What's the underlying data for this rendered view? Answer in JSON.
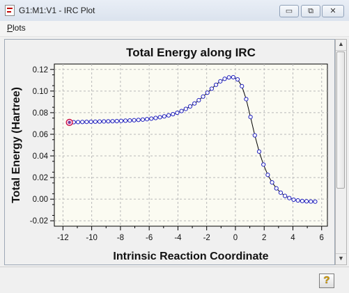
{
  "window": {
    "title": "G1:M1:V1 - IRC Plot",
    "buttons": {
      "minimize": "▭",
      "maximize": "⧉",
      "close": "✕"
    }
  },
  "menu": {
    "items": [
      "Plots"
    ]
  },
  "scrollbar": {
    "up": "▲",
    "down": "▼"
  },
  "help": {
    "label": "?"
  },
  "colors": {
    "plot_background": "#fbfbf2",
    "marker": "#1f1fbf",
    "highlight_marker": "#cc0033",
    "line": "#000000"
  },
  "chart_data": {
    "type": "line",
    "title": "Total Energy along IRC",
    "xlabel": "Intrinsic Reaction Coordinate",
    "ylabel": "Total Energy (Hartree)",
    "xlim": [
      -12.6,
      6.4
    ],
    "ylim": [
      -0.025,
      0.125
    ],
    "xticks": [
      -12,
      -10,
      -8,
      -6,
      -4,
      -2,
      0,
      2,
      4,
      6
    ],
    "yticks": [
      -0.02,
      0.0,
      0.02,
      0.04,
      0.06,
      0.08,
      0.1,
      0.12
    ],
    "xtick_labels": [
      "-12",
      "-10",
      "-8",
      "-6",
      "-4",
      "-2",
      "0",
      "2",
      "4",
      "6"
    ],
    "ytick_labels": [
      "-0.02",
      "0.00",
      "0.02",
      "0.04",
      "0.06",
      "0.08",
      "0.10",
      "0.12"
    ],
    "grid": true,
    "series": [
      {
        "x": [
          -11.55,
          -11.25,
          -10.95,
          -10.65,
          -10.35,
          -10.05,
          -9.75,
          -9.45,
          -9.15,
          -8.85,
          -8.55,
          -8.25,
          -7.95,
          -7.65,
          -7.35,
          -7.05,
          -6.75,
          -6.45,
          -6.15,
          -5.85,
          -5.55,
          -5.25,
          -4.95,
          -4.65,
          -4.35,
          -4.05,
          -3.75,
          -3.45,
          -3.15,
          -2.85,
          -2.55,
          -2.25,
          -1.95,
          -1.65,
          -1.35,
          -1.05,
          -0.75,
          -0.45,
          -0.15,
          0.15,
          0.45,
          0.75,
          1.05,
          1.35,
          1.65,
          1.95,
          2.25,
          2.55,
          2.85,
          3.15,
          3.45,
          3.75,
          4.05,
          4.35,
          4.65,
          4.95,
          5.25,
          5.55
        ],
        "y": [
          0.071,
          0.0712,
          0.0713,
          0.0714,
          0.0715,
          0.0716,
          0.0717,
          0.0718,
          0.0719,
          0.072,
          0.0721,
          0.0722,
          0.0724,
          0.0726,
          0.0728,
          0.073,
          0.0733,
          0.0736,
          0.074,
          0.0745,
          0.0751,
          0.0758,
          0.0766,
          0.0775,
          0.0786,
          0.0799,
          0.0815,
          0.0835,
          0.0858,
          0.0885,
          0.0915,
          0.0949,
          0.0985,
          0.1022,
          0.1058,
          0.109,
          0.1113,
          0.1126,
          0.1128,
          0.1108,
          0.1045,
          0.0925,
          0.076,
          0.059,
          0.044,
          0.032,
          0.0225,
          0.0155,
          0.01,
          0.006,
          0.003,
          0.001,
          -0.0005,
          -0.0012,
          -0.0017,
          -0.002,
          -0.0022,
          -0.0023
        ]
      }
    ],
    "highlight_index": 0
  }
}
